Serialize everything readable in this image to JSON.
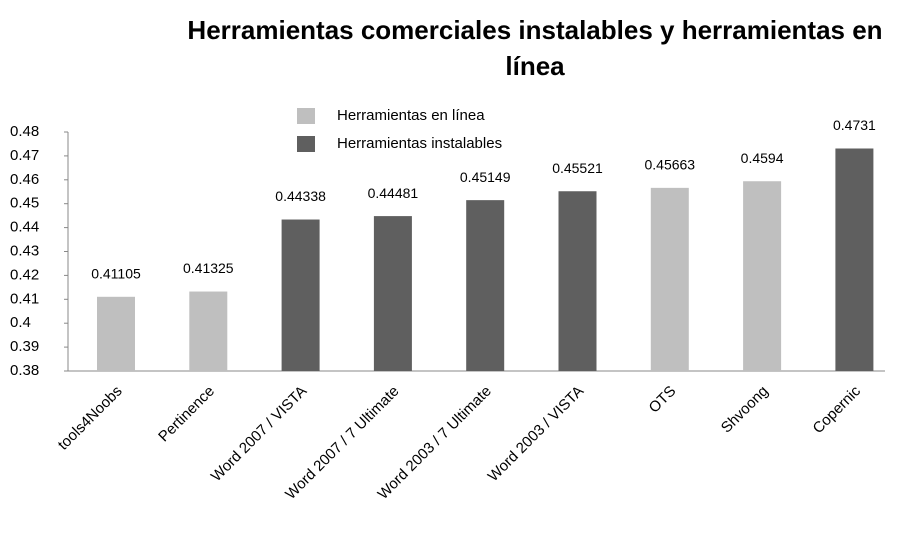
{
  "chart_data": {
    "type": "bar",
    "title": "Herramientas comerciales instalables y herramientas en línea",
    "categories": [
      "tools4Noobs",
      "Pertinence",
      "Word 2007 / VISTA",
      "Word 2007 / 7 Ultimate",
      "Word 2003 / 7 Ultimate",
      "Word 2003 / VISTA",
      "OTS",
      "Shvoong",
      "Copernic"
    ],
    "series": [
      {
        "name": "Herramientas en línea",
        "color": "#bfbfbf",
        "values": [
          0.41105,
          0.41325,
          null,
          null,
          null,
          null,
          0.45663,
          0.4594,
          null
        ]
      },
      {
        "name": "Herramientas instalables",
        "color": "#5f5f5f",
        "values": [
          null,
          null,
          0.44338,
          0.44481,
          0.45149,
          0.45521,
          null,
          null,
          0.4731
        ]
      }
    ],
    "ylim": [
      0.38,
      0.48
    ],
    "yticks": [
      0.38,
      0.39,
      0.4,
      0.41,
      0.42,
      0.43,
      0.44,
      0.45,
      0.46,
      0.47,
      0.48
    ],
    "grid": false,
    "legend": "top"
  }
}
